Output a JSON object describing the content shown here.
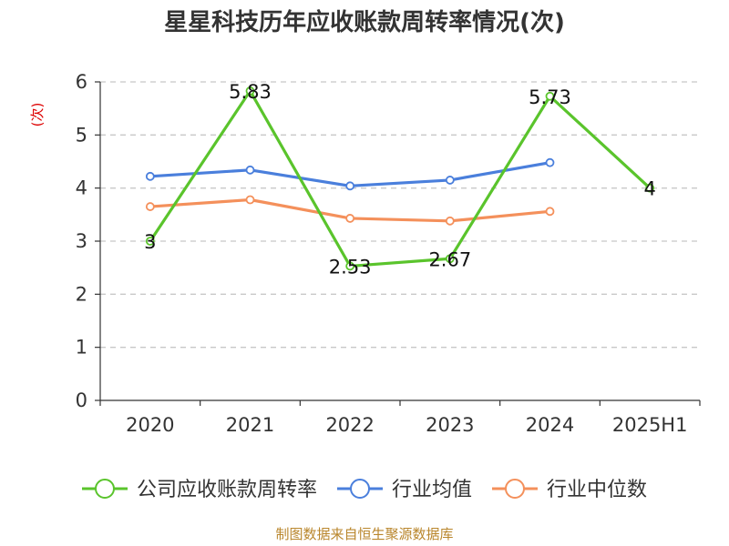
{
  "chart_data": {
    "type": "line",
    "title": "星星科技历年应收账款周转率情况(次)",
    "ylabel": "(次)",
    "xlabel": "",
    "categories": [
      "2020",
      "2021",
      "2022",
      "2023",
      "2024",
      "2025H1"
    ],
    "ylim": [
      0,
      6
    ],
    "yticks": [
      0,
      1,
      2,
      3,
      4,
      5,
      6
    ],
    "grid": true,
    "legend_position": "bottom",
    "series": [
      {
        "name": "公司应收账款周转率",
        "color": "#5ac42c",
        "values": [
          3,
          5.83,
          2.53,
          2.67,
          5.73,
          4
        ],
        "data_labels": [
          "3",
          "5.83",
          "2.53",
          "2.67",
          "5.73",
          "4"
        ]
      },
      {
        "name": "行业均值",
        "color": "#4a7fdc",
        "values": [
          4.22,
          4.34,
          4.04,
          4.15,
          4.48,
          null
        ]
      },
      {
        "name": "行业中位数",
        "color": "#f4905b",
        "values": [
          3.65,
          3.78,
          3.43,
          3.38,
          3.56,
          null
        ]
      }
    ]
  },
  "footer": {
    "source": "制图数据来自恒生聚源数据库"
  }
}
